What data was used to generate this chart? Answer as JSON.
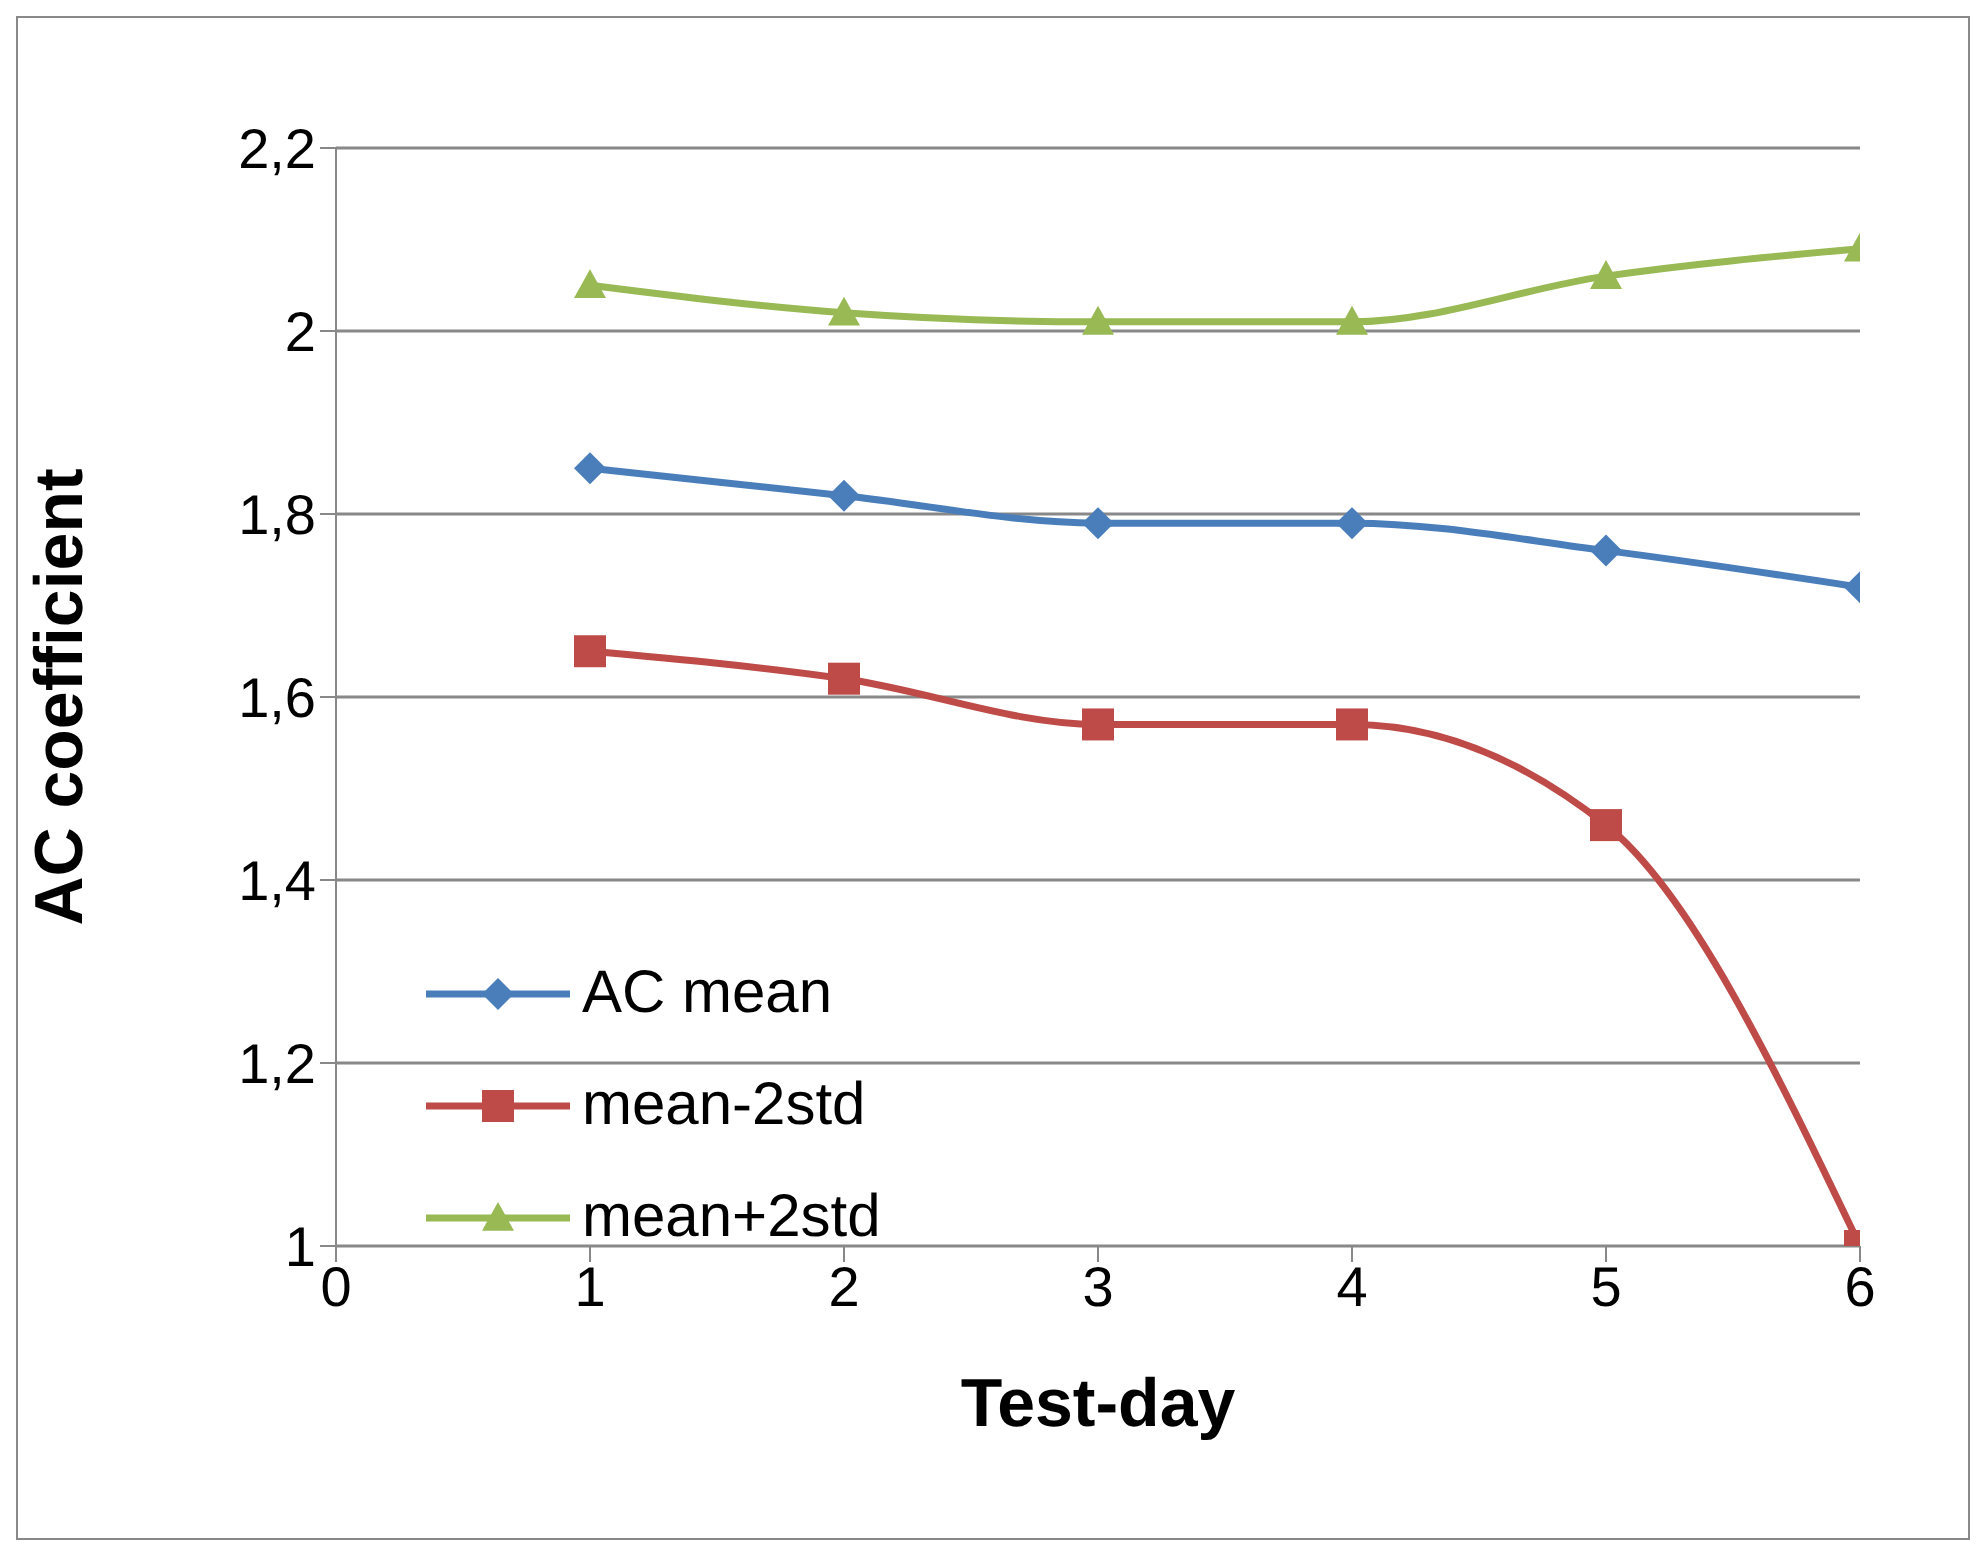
{
  "chart_data": {
    "type": "line",
    "xlabel": "Test-day",
    "ylabel": "AC coefficient",
    "x": [
      1,
      2,
      3,
      4,
      5,
      6
    ],
    "series": [
      {
        "name": "AC mean",
        "color": "#4a7ebb",
        "marker": "diamond",
        "values": [
          1.85,
          1.82,
          1.79,
          1.79,
          1.76,
          1.72
        ]
      },
      {
        "name": "mean-2std",
        "color": "#be4b48",
        "marker": "square",
        "values": [
          1.65,
          1.62,
          1.57,
          1.57,
          1.46,
          1.0
        ]
      },
      {
        "name": "mean+2std",
        "color": "#98b954",
        "marker": "triangle",
        "values": [
          2.05,
          2.02,
          2.01,
          2.01,
          2.06,
          2.09
        ]
      }
    ],
    "xlim": [
      0,
      6
    ],
    "xticks": [
      0,
      1,
      2,
      3,
      4,
      5,
      6
    ],
    "ylim": [
      1,
      2.2
    ],
    "yticks": [
      1,
      {
        "value": 1.2,
        "label": "1,2"
      },
      {
        "value": 1.4,
        "label": "1,4"
      },
      {
        "value": 1.6,
        "label": "1,6"
      },
      {
        "value": 1.8,
        "label": "1,8"
      },
      2,
      {
        "value": 2.2,
        "label": "2,2"
      }
    ],
    "grid": "y",
    "legend": "bottom left",
    "line_style": "solid"
  }
}
